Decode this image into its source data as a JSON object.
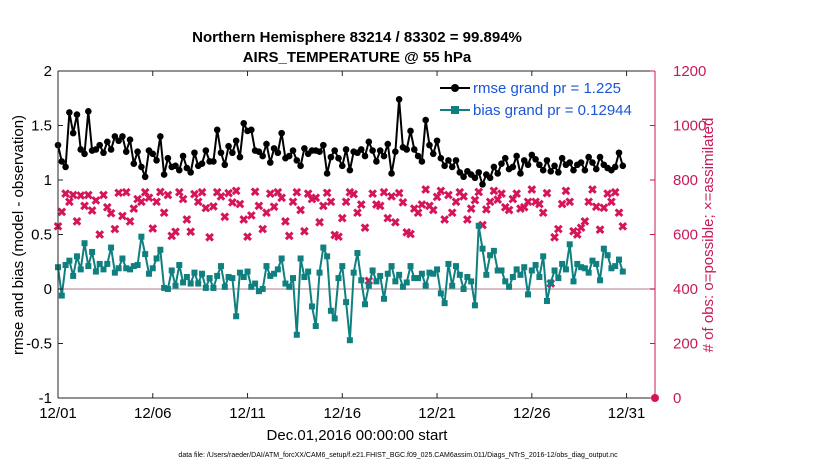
{
  "chart_data": {
    "type": "line",
    "title_line1": "Northern Hemisphere 83214 / 83302 = 99.894%",
    "title_line2": "AIRS_TEMPERATURE @ 55 hPa",
    "xlabel": "Dec.01,2016 00:00:00 start",
    "ylabel_left": "rmse and bias (model - observation)",
    "ylabel_right": "# of obs: o=possible; ×=assimilated",
    "xlim": [
      0,
      31.5
    ],
    "ylim_left": [
      -1,
      2
    ],
    "ylim_right": [
      0,
      1200
    ],
    "x_ticks": [
      0,
      5,
      10,
      15,
      20,
      25,
      30
    ],
    "x_tick_labels": [
      "12/01",
      "12/06",
      "12/11",
      "12/16",
      "12/21",
      "12/26",
      "12/31"
    ],
    "y_left_ticks": [
      -1,
      -0.5,
      0,
      0.5,
      1,
      1.5,
      2
    ],
    "y_left_tick_labels": [
      "-1",
      "-0.5",
      "0",
      "0.5",
      "1",
      "1.5",
      "2"
    ],
    "y_right_ticks": [
      0,
      200,
      400,
      600,
      800,
      1000,
      1200
    ],
    "y_right_tick_labels": [
      "0",
      "200",
      "400",
      "600",
      "800",
      "1000",
      "1200"
    ],
    "footnote": "data file: /Users/raeder/DAI/ATM_forcXX/CAM6_setup/f.e21.FHIST_BGC.f09_025.CAM6assim.011/Diags_NTrS_2016-12/obs_diag_output.nc",
    "colors": {
      "rmse": "#000000",
      "bias": "#0f7f7f",
      "obs": "#d6145a",
      "right_axis": "#c71a5a",
      "zero_line": "#c8a8b0",
      "legend_text": "#1a56d6"
    },
    "series": [
      {
        "name": "rmse grand pr = 1.225",
        "axis": "left",
        "marker": "filled-circle",
        "values": [
          1.32,
          1.17,
          1.12,
          1.62,
          1.43,
          1.6,
          1.28,
          1.24,
          1.63,
          1.27,
          1.28,
          1.32,
          1.25,
          1.35,
          1.28,
          1.4,
          1.36,
          1.4,
          1.26,
          1.37,
          1.15,
          1.26,
          1.12,
          1.03,
          1.27,
          1.24,
          1.18,
          1.4,
          1.05,
          1.2,
          1.12,
          1.13,
          1.09,
          1.22,
          1.11,
          1.07,
          1.25,
          1.13,
          1.15,
          1.27,
          1.17,
          1.17,
          1.46,
          1.25,
          1.14,
          1.31,
          1.25,
          1.36,
          1.21,
          1.52,
          1.45,
          1.46,
          1.27,
          1.26,
          1.22,
          1.33,
          1.16,
          1.29,
          1.25,
          1.43,
          1.2,
          1.22,
          1.27,
          1.18,
          1.13,
          1.29,
          1.24,
          1.27,
          1.27,
          1.26,
          1.32,
          1.06,
          1.21,
          1.27,
          1.2,
          1.13,
          1.28,
          1.09,
          1.26,
          1.25,
          1.28,
          1.22,
          1.35,
          1.27,
          1.17,
          1.27,
          1.22,
          1.33,
          1.06,
          1.26,
          1.74,
          1.3,
          1.28,
          1.45,
          1.28,
          1.22,
          1.17,
          1.55,
          1.32,
          1.24,
          1.36,
          1.2,
          1.13,
          1.18,
          1.12,
          1.18,
          1.07,
          1.03,
          1.08,
          1.05,
          1.02,
          1.07,
          0.96,
          1.05,
          1.02,
          1.12,
          1.06,
          1.15,
          1.2,
          1.1,
          1.12,
          1.22,
          1.06,
          1.18,
          1.14,
          1.23,
          1.19,
          1.14,
          1.09,
          1.18,
          1.08,
          1.13,
          1.07,
          1.2,
          1.14,
          1.16,
          1.09,
          1.14,
          1.16,
          1.09,
          1.21,
          1.16,
          1.1,
          1.21,
          1.14,
          1.11,
          1.09,
          1.12,
          1.25,
          1.13
        ]
      },
      {
        "name": "bias grand pr = 0.12944",
        "axis": "left",
        "marker": "filled-square",
        "values": [
          0.2,
          -0.06,
          0.22,
          0.26,
          0.12,
          0.3,
          0.18,
          0.42,
          0.21,
          0.34,
          0.16,
          0.23,
          0.18,
          0.23,
          0.38,
          0.15,
          0.19,
          0.28,
          0.19,
          0.18,
          0.21,
          0.22,
          0.48,
          0.32,
          0.14,
          0.19,
          0.28,
          0.36,
          0.01,
          0.0,
          0.17,
          0.03,
          0.22,
          0.06,
          0.11,
          0.05,
          0.15,
          0.05,
          0.14,
          0.01,
          0.1,
          0.01,
          0.12,
          0.21,
          0.02,
          0.11,
          0.1,
          -0.25,
          0.15,
          0.11,
          0.16,
          0.02,
          0.05,
          -0.02,
          0.0,
          0.21,
          0.12,
          0.14,
          0.18,
          0.28,
          0.05,
          0.02,
          0.1,
          -0.42,
          0.28,
          0.11,
          0.16,
          -0.16,
          -0.34,
          0.15,
          0.38,
          0.3,
          -0.2,
          -0.27,
          0.1,
          0.21,
          -0.12,
          -0.47,
          0.15,
          0.33,
          0.08,
          -0.14,
          0.03,
          0.17,
          0.07,
          0.12,
          -0.09,
          0.14,
          0.21,
          0.07,
          0.13,
          0.02,
          0.06,
          0.21,
          0.1,
          0.1,
          0.14,
          0.03,
          0.15,
          0.14,
          0.18,
          -0.04,
          -0.13,
          0.23,
          0.03,
          0.21,
          0.13,
          0.0,
          0.11,
          0.07,
          -0.15,
          0.58,
          0.37,
          0.13,
          0.31,
          0.35,
          0.17,
          0.17,
          0.07,
          0.02,
          0.11,
          0.18,
          0.13,
          0.2,
          -0.05,
          0.17,
          0.22,
          0.11,
          0.3,
          -0.11,
          0.06,
          0.17,
          0.1,
          0.23,
          0.18,
          0.41,
          0.07,
          0.23,
          0.2,
          0.19,
          0.15,
          0.26,
          0.23,
          0.08,
          0.37,
          0.31,
          0.19,
          0.21,
          0.27,
          0.16
        ]
      },
      {
        "name": "possible",
        "axis": "right",
        "marker": "circle",
        "values": [
          0
        ]
      },
      {
        "name": "assimilated",
        "axis": "right",
        "marker": "x",
        "values": [
          630,
          683,
          750,
          720,
          745,
          648,
          743,
          705,
          745,
          688,
          725,
          600,
          745,
          700,
          678,
          620,
          753,
          668,
          755,
          648,
          695,
          730,
          720,
          755,
          735,
          622,
          720,
          756,
          680,
          745,
          595,
          610,
          755,
          730,
          655,
          610,
          748,
          720,
          755,
          697,
          590,
          703,
          755,
          740,
          665,
          752,
          718,
          760,
          712,
          655,
          592,
          670,
          757,
          705,
          620,
          680,
          750,
          702,
          755,
          735,
          648,
          595,
          720,
          755,
          690,
          612,
          750,
          730,
          735,
          645,
          705,
          753,
          720,
          598,
          592,
          660,
          720,
          755,
          748,
          680,
          710,
          625,
          430,
          750,
          710,
          705,
          755,
          660,
          740,
          645,
          752,
          718,
          608,
          602,
          695,
          680,
          710,
          765,
          705,
          690,
          738,
          760,
          655,
          745,
          680,
          720,
          755,
          740,
          655,
          695,
          726,
          756,
          635,
          692,
          720,
          760,
          728,
          750,
          700,
          690,
          730,
          750,
          695,
          700,
          720,
          765,
          720,
          712,
          680,
          752,
          420,
          590,
          620,
          712,
          760,
          720,
          612,
          600,
          625,
          648,
          720,
          765,
          702,
          618,
          698,
          750,
          720,
          755,
          680,
          630
        ]
      }
    ]
  }
}
